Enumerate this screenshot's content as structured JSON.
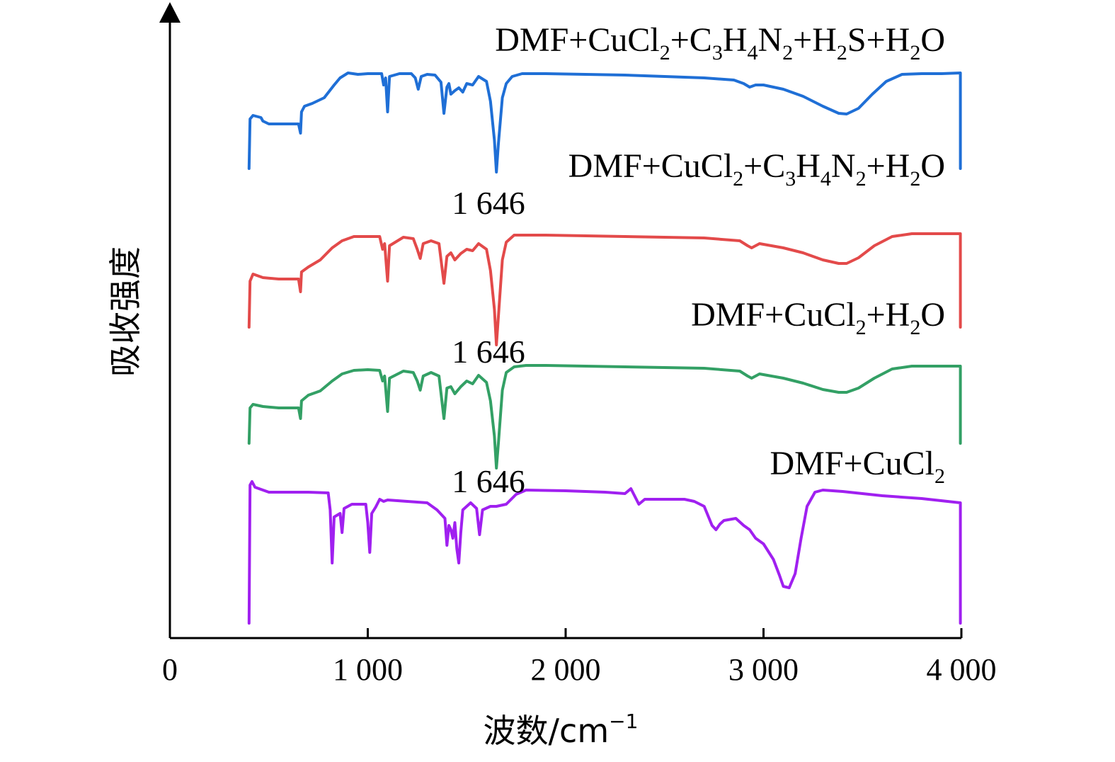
{
  "chart_data": {
    "type": "line",
    "title": "",
    "xlabel": "波数/cm",
    "xlabel_sup": "−1",
    "ylabel": "吸收强度",
    "xlim": [
      0,
      4000
    ],
    "x_ticks": [
      0,
      1000,
      2000,
      3000,
      4000
    ],
    "x_tick_labels": [
      "0",
      "1 000",
      "2 000",
      "3 000",
      "4 000"
    ],
    "grid": false,
    "legend": "inline labels above each curve",
    "series": [
      {
        "name": "DMF+CuCl₂+C₃H₄N₂+H₂S+H₂O",
        "label_parts": [
          [
            "DMF+CuCl",
            ""
          ],
          [
            "2",
            "sub"
          ],
          [
            "+C",
            ""
          ],
          [
            "3",
            "sub"
          ],
          [
            "H",
            ""
          ],
          [
            "4",
            "sub"
          ],
          [
            "N",
            ""
          ],
          [
            "2",
            "sub"
          ],
          [
            "+H",
            ""
          ],
          [
            "2",
            "sub"
          ],
          [
            "S+H",
            ""
          ],
          [
            "2",
            "sub"
          ],
          [
            "O",
            ""
          ]
        ],
        "color": "#1f6fd6",
        "points": [
          [
            400,
            180
          ],
          [
            405,
            110
          ],
          [
            420,
            105
          ],
          [
            460,
            108
          ],
          [
            470,
            113
          ],
          [
            500,
            117
          ],
          [
            560,
            117
          ],
          [
            650,
            117
          ],
          [
            660,
            130
          ],
          [
            665,
            100
          ],
          [
            680,
            92
          ],
          [
            720,
            88
          ],
          [
            780,
            80
          ],
          [
            830,
            62
          ],
          [
            860,
            52
          ],
          [
            900,
            45
          ],
          [
            950,
            47
          ],
          [
            1000,
            46
          ],
          [
            1070,
            46
          ],
          [
            1080,
            62
          ],
          [
            1090,
            52
          ],
          [
            1100,
            100
          ],
          [
            1110,
            50
          ],
          [
            1160,
            46
          ],
          [
            1220,
            46
          ],
          [
            1240,
            52
          ],
          [
            1255,
            68
          ],
          [
            1270,
            50
          ],
          [
            1300,
            47
          ],
          [
            1340,
            48
          ],
          [
            1370,
            58
          ],
          [
            1385,
            102
          ],
          [
            1400,
            65
          ],
          [
            1410,
            60
          ],
          [
            1420,
            75
          ],
          [
            1440,
            70
          ],
          [
            1460,
            66
          ],
          [
            1480,
            72
          ],
          [
            1500,
            60
          ],
          [
            1530,
            62
          ],
          [
            1560,
            50
          ],
          [
            1600,
            57
          ],
          [
            1620,
            85
          ],
          [
            1640,
            140
          ],
          [
            1650,
            185
          ],
          [
            1660,
            145
          ],
          [
            1680,
            80
          ],
          [
            1700,
            60
          ],
          [
            1730,
            50
          ],
          [
            1780,
            46
          ],
          [
            1900,
            46
          ],
          [
            2100,
            47
          ],
          [
            2300,
            48
          ],
          [
            2500,
            50
          ],
          [
            2700,
            52
          ],
          [
            2850,
            55
          ],
          [
            2900,
            60
          ],
          [
            2930,
            65
          ],
          [
            2960,
            62
          ],
          [
            3000,
            62
          ],
          [
            3100,
            68
          ],
          [
            3200,
            78
          ],
          [
            3300,
            92
          ],
          [
            3380,
            102
          ],
          [
            3420,
            103
          ],
          [
            3480,
            95
          ],
          [
            3550,
            75
          ],
          [
            3620,
            57
          ],
          [
            3700,
            47
          ],
          [
            3800,
            46
          ],
          [
            3900,
            46
          ],
          [
            3995,
            45
          ],
          [
            3995,
            180
          ]
        ]
      },
      {
        "name": "DMF+CuCl₂+C₃H₄N₂+H₂O",
        "label_parts": [
          [
            "DMF+CuCl",
            ""
          ],
          [
            "2",
            "sub"
          ],
          [
            "+C",
            ""
          ],
          [
            "3",
            "sub"
          ],
          [
            "H",
            ""
          ],
          [
            "4",
            "sub"
          ],
          [
            "N",
            ""
          ],
          [
            "2",
            "sub"
          ],
          [
            "+H",
            ""
          ],
          [
            "2",
            "sub"
          ],
          [
            "O",
            ""
          ]
        ],
        "color": "#e34a4a",
        "points": [
          [
            400,
            190
          ],
          [
            405,
            125
          ],
          [
            420,
            115
          ],
          [
            470,
            120
          ],
          [
            550,
            122
          ],
          [
            650,
            122
          ],
          [
            660,
            140
          ],
          [
            665,
            112
          ],
          [
            700,
            105
          ],
          [
            760,
            95
          ],
          [
            820,
            78
          ],
          [
            870,
            68
          ],
          [
            930,
            62
          ],
          [
            1000,
            62
          ],
          [
            1060,
            62
          ],
          [
            1075,
            80
          ],
          [
            1085,
            72
          ],
          [
            1100,
            125
          ],
          [
            1110,
            75
          ],
          [
            1180,
            63
          ],
          [
            1230,
            65
          ],
          [
            1250,
            80
          ],
          [
            1265,
            93
          ],
          [
            1280,
            72
          ],
          [
            1320,
            68
          ],
          [
            1360,
            72
          ],
          [
            1385,
            128
          ],
          [
            1400,
            90
          ],
          [
            1420,
            85
          ],
          [
            1440,
            95
          ],
          [
            1470,
            86
          ],
          [
            1500,
            80
          ],
          [
            1530,
            82
          ],
          [
            1560,
            72
          ],
          [
            1600,
            80
          ],
          [
            1620,
            110
          ],
          [
            1640,
            165
          ],
          [
            1650,
            215
          ],
          [
            1660,
            175
          ],
          [
            1680,
            95
          ],
          [
            1700,
            70
          ],
          [
            1740,
            60
          ],
          [
            1800,
            60
          ],
          [
            1900,
            60
          ],
          [
            2100,
            61
          ],
          [
            2300,
            62
          ],
          [
            2500,
            63
          ],
          [
            2700,
            64
          ],
          [
            2880,
            68
          ],
          [
            2920,
            75
          ],
          [
            2940,
            78
          ],
          [
            2980,
            72
          ],
          [
            3100,
            78
          ],
          [
            3200,
            85
          ],
          [
            3300,
            95
          ],
          [
            3380,
            100
          ],
          [
            3420,
            100
          ],
          [
            3480,
            92
          ],
          [
            3560,
            75
          ],
          [
            3650,
            62
          ],
          [
            3750,
            58
          ],
          [
            3850,
            58
          ],
          [
            3995,
            58
          ],
          [
            3995,
            190
          ]
        ]
      },
      {
        "name": "DMF+CuCl₂+H₂O",
        "label_parts": [
          [
            "DMF+CuCl",
            ""
          ],
          [
            "2",
            "sub"
          ],
          [
            "+H",
            ""
          ],
          [
            "2",
            "sub"
          ],
          [
            "O",
            ""
          ]
        ],
        "color": "#33a065",
        "points": [
          [
            400,
            160
          ],
          [
            405,
            110
          ],
          [
            420,
            105
          ],
          [
            470,
            108
          ],
          [
            550,
            110
          ],
          [
            650,
            110
          ],
          [
            660,
            125
          ],
          [
            665,
            100
          ],
          [
            700,
            92
          ],
          [
            760,
            86
          ],
          [
            820,
            72
          ],
          [
            870,
            62
          ],
          [
            930,
            57
          ],
          [
            1000,
            56
          ],
          [
            1060,
            57
          ],
          [
            1075,
            72
          ],
          [
            1085,
            65
          ],
          [
            1100,
            115
          ],
          [
            1110,
            68
          ],
          [
            1180,
            58
          ],
          [
            1230,
            60
          ],
          [
            1250,
            72
          ],
          [
            1265,
            85
          ],
          [
            1280,
            65
          ],
          [
            1320,
            60
          ],
          [
            1360,
            65
          ],
          [
            1385,
            125
          ],
          [
            1400,
            82
          ],
          [
            1420,
            80
          ],
          [
            1440,
            90
          ],
          [
            1470,
            80
          ],
          [
            1500,
            72
          ],
          [
            1530,
            76
          ],
          [
            1560,
            64
          ],
          [
            1600,
            74
          ],
          [
            1620,
            100
          ],
          [
            1640,
            150
          ],
          [
            1650,
            195
          ],
          [
            1660,
            160
          ],
          [
            1680,
            85
          ],
          [
            1700,
            60
          ],
          [
            1740,
            52
          ],
          [
            1800,
            50
          ],
          [
            1900,
            50
          ],
          [
            2100,
            51
          ],
          [
            2300,
            52
          ],
          [
            2500,
            53
          ],
          [
            2700,
            54
          ],
          [
            2880,
            58
          ],
          [
            2920,
            65
          ],
          [
            2940,
            68
          ],
          [
            2980,
            62
          ],
          [
            3100,
            68
          ],
          [
            3200,
            75
          ],
          [
            3300,
            84
          ],
          [
            3380,
            88
          ],
          [
            3420,
            88
          ],
          [
            3480,
            82
          ],
          [
            3560,
            68
          ],
          [
            3650,
            55
          ],
          [
            3750,
            51
          ],
          [
            3850,
            51
          ],
          [
            3995,
            51
          ],
          [
            3995,
            160
          ]
        ]
      },
      {
        "name": "DMF+CuCl₂",
        "label_parts": [
          [
            "DMF+CuCl",
            ""
          ],
          [
            "2",
            "sub"
          ]
        ],
        "color": "#a020f0",
        "points": [
          [
            400,
            220
          ],
          [
            405,
            25
          ],
          [
            415,
            20
          ],
          [
            430,
            28
          ],
          [
            500,
            35
          ],
          [
            600,
            35
          ],
          [
            700,
            35
          ],
          [
            800,
            36
          ],
          [
            810,
            60
          ],
          [
            820,
            135
          ],
          [
            830,
            70
          ],
          [
            860,
            65
          ],
          [
            870,
            92
          ],
          [
            880,
            58
          ],
          [
            920,
            52
          ],
          [
            990,
            52
          ],
          [
            1000,
            78
          ],
          [
            1010,
            120
          ],
          [
            1020,
            65
          ],
          [
            1040,
            56
          ],
          [
            1060,
            45
          ],
          [
            1080,
            48
          ],
          [
            1100,
            46
          ],
          [
            1200,
            48
          ],
          [
            1300,
            50
          ],
          [
            1350,
            60
          ],
          [
            1390,
            72
          ],
          [
            1400,
            110
          ],
          [
            1410,
            82
          ],
          [
            1420,
            88
          ],
          [
            1430,
            100
          ],
          [
            1440,
            78
          ],
          [
            1450,
            115
          ],
          [
            1460,
            135
          ],
          [
            1470,
            92
          ],
          [
            1480,
            60
          ],
          [
            1520,
            50
          ],
          [
            1550,
            58
          ],
          [
            1565,
            95
          ],
          [
            1580,
            60
          ],
          [
            1620,
            55
          ],
          [
            1650,
            55
          ],
          [
            1700,
            52
          ],
          [
            1750,
            38
          ],
          [
            1800,
            32
          ],
          [
            2000,
            33
          ],
          [
            2200,
            35
          ],
          [
            2300,
            37
          ],
          [
            2330,
            30
          ],
          [
            2370,
            52
          ],
          [
            2400,
            45
          ],
          [
            2500,
            45
          ],
          [
            2600,
            45
          ],
          [
            2650,
            48
          ],
          [
            2700,
            55
          ],
          [
            2740,
            82
          ],
          [
            2760,
            88
          ],
          [
            2780,
            80
          ],
          [
            2800,
            75
          ],
          [
            2860,
            72
          ],
          [
            2900,
            82
          ],
          [
            2930,
            88
          ],
          [
            2960,
            100
          ],
          [
            3000,
            108
          ],
          [
            3050,
            130
          ],
          [
            3080,
            152
          ],
          [
            3100,
            168
          ],
          [
            3130,
            170
          ],
          [
            3160,
            150
          ],
          [
            3190,
            100
          ],
          [
            3220,
            55
          ],
          [
            3260,
            35
          ],
          [
            3300,
            32
          ],
          [
            3400,
            34
          ],
          [
            3600,
            40
          ],
          [
            3800,
            44
          ],
          [
            3995,
            50
          ],
          [
            3995,
            220
          ]
        ]
      }
    ],
    "annotations": [
      {
        "text": "1 646",
        "x": 1646,
        "series": 0
      },
      {
        "text": "1 646",
        "x": 1646,
        "series": 1
      },
      {
        "text": "1 646",
        "x": 1646,
        "series": 2
      }
    ]
  }
}
